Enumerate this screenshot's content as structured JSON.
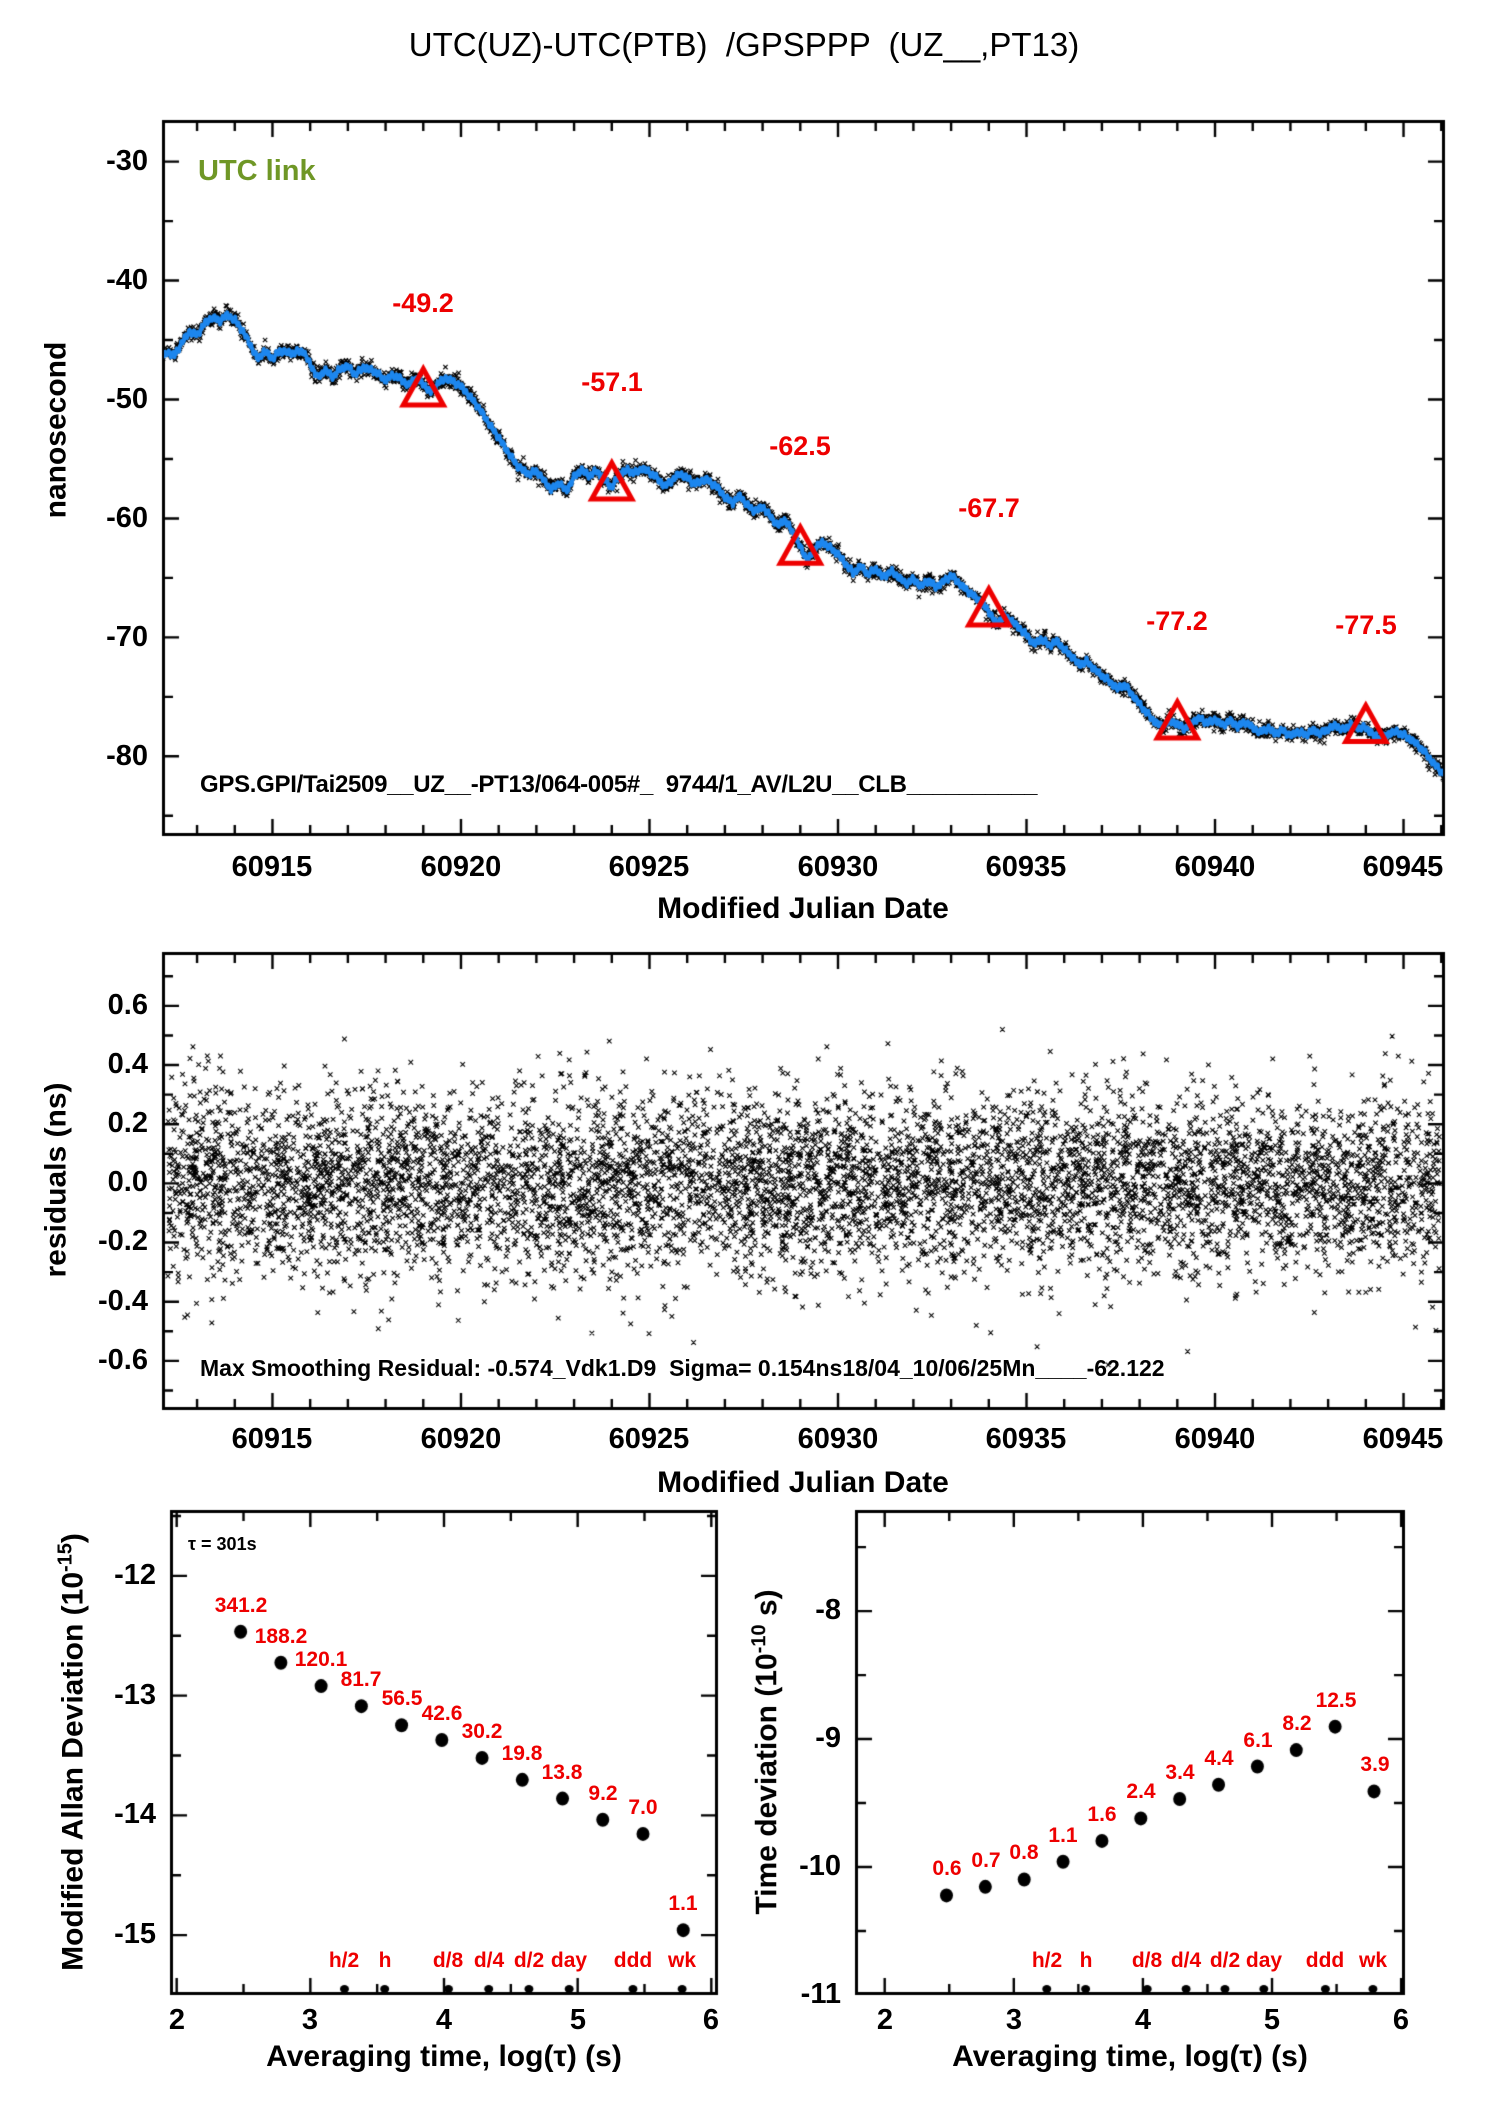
{
  "title": "UTC(UZ)-UTC(PTB)  /GPSPPP  (UZ__,PT13)",
  "colors": {
    "series_blue": "#1c86ee",
    "accent_red": "#ee0000",
    "utc_link_green": "#6f9726",
    "ink": "#000000"
  },
  "top_panel": {
    "corner_label": "UTC link",
    "ylabel": "nanosecond",
    "xlabel": "Modified Julian Date",
    "footer": "GPS.GPI/Tai2509__UZ__-PT13/064-005#_  9744/1_AV/L2U__CLB__________",
    "x_tick_labels": [
      "60915",
      "60920",
      "60925",
      "60930",
      "60935",
      "60940",
      "60945"
    ],
    "y_tick_labels": [
      "-30",
      "-40",
      "-50",
      "-60",
      "-70",
      "-80"
    ],
    "annotations": [
      "-49.2",
      "-57.1",
      "-62.5",
      "-67.7",
      "-77.2",
      "-77.5"
    ]
  },
  "residuals_panel": {
    "ylabel": "residuals (ns)",
    "xlabel": "Modified Julian Date",
    "stats_line": "Max Smoothing Residual: -0.574_Vdk1.D9  Sigma= 0.154ns18/04_10/06/25Mn____-62.122",
    "x_tick_labels": [
      "60915",
      "60920",
      "60925",
      "60930",
      "60935",
      "60940",
      "60945"
    ],
    "y_tick_labels": [
      "0.6",
      "0.4",
      "0.2",
      "0.0",
      "-0.2",
      "-0.4",
      "-0.6"
    ]
  },
  "mdev_panel": {
    "tau_note": "τ = 301s",
    "ylabel_parts": {
      "pre": "Modified Allan Deviation (10",
      "sup": "-15",
      "post": ")"
    },
    "xlabel": "Averaging time, log(τ) (s)",
    "x_tick_labels": [
      "2",
      "3",
      "4",
      "5",
      "6"
    ],
    "y_tick_labels": [
      "-12",
      "-13",
      "-14",
      "-15"
    ],
    "point_labels": [
      "341.2",
      "188.2",
      "120.1",
      "81.7",
      "56.5",
      "42.6",
      "30.2",
      "19.8",
      "13.8",
      "9.2",
      "7.0",
      "1.1"
    ],
    "tau_marker_labels": [
      "h/2",
      "h",
      "d/8",
      "d/4",
      "d/2",
      "day",
      "ddd",
      "wk"
    ]
  },
  "tdev_panel": {
    "ylabel_parts": {
      "pre": "Time deviation (10",
      "sup": "-10",
      "post": " s)"
    },
    "xlabel": "Averaging time, log(τ) (s)",
    "x_tick_labels": [
      "2",
      "3",
      "4",
      "5",
      "6"
    ],
    "y_tick_labels": [
      "-8",
      "-9",
      "-10",
      "-11"
    ],
    "point_labels": [
      "0.6",
      "0.7",
      "0.8",
      "1.1",
      "1.6",
      "2.4",
      "3.4",
      "4.4",
      "6.1",
      "8.2",
      "12.5",
      "3.9"
    ],
    "tau_marker_labels": [
      "h/2",
      "h",
      "d/8",
      "d/4",
      "d/2",
      "day",
      "ddd",
      "wk"
    ]
  },
  "chart_data": [
    {
      "id": "utc_link_timeseries",
      "type": "line",
      "title": "UTC(UZ)-UTC(PTB) /GPSPPP (UZ__,PT13)",
      "xlabel": "Modified Julian Date",
      "ylabel": "nanosecond",
      "legend": "UTC link",
      "xlim": [
        60912.07,
        60946.1
      ],
      "ylim": [
        -86.7,
        -26.5
      ],
      "ticks": {
        "x": {
          "minor": 1,
          "major": 5
        },
        "y": {
          "minor": 5,
          "major": 10
        }
      },
      "x_major_ticks": [
        60915,
        60920,
        60925,
        60930,
        60935,
        60940,
        60945
      ],
      "y_major_ticks": [
        -30,
        -40,
        -50,
        -60,
        -70,
        -80
      ],
      "raw_scatter_sigma_ns": 0.3,
      "daily_markers": [
        {
          "x": 60919,
          "y": -49.2,
          "label": "-49.2"
        },
        {
          "x": 60924,
          "y": -57.1,
          "label": "-57.1"
        },
        {
          "x": 60929,
          "y": -62.5,
          "label": "-62.5"
        },
        {
          "x": 60934,
          "y": -67.7,
          "label": "-67.7"
        },
        {
          "x": 60939,
          "y": -77.2,
          "label": "-77.2"
        },
        {
          "x": 60944,
          "y": -77.5,
          "label": "-77.5"
        }
      ],
      "series": [
        {
          "name": "UTC link smoothed",
          "color": "#1c86ee",
          "points": [
            [
              60912.0,
              -46.8
            ],
            [
              60912.2,
              -46.0
            ],
            [
              60912.4,
              -46.3
            ],
            [
              60912.6,
              -45.2
            ],
            [
              60912.8,
              -44.3
            ],
            [
              60913.0,
              -44.6
            ],
            [
              60913.2,
              -43.6
            ],
            [
              60913.4,
              -43.1
            ],
            [
              60913.6,
              -43.4
            ],
            [
              60913.8,
              -42.9
            ],
            [
              60914.0,
              -43.3
            ],
            [
              60914.2,
              -44.2
            ],
            [
              60914.4,
              -45.3
            ],
            [
              60914.6,
              -46.6
            ],
            [
              60914.8,
              -45.9
            ],
            [
              60915.0,
              -46.6
            ],
            [
              60915.2,
              -45.9
            ],
            [
              60915.5,
              -46.1
            ],
            [
              60915.8,
              -45.9
            ],
            [
              60916.0,
              -47.0
            ],
            [
              60916.2,
              -48.2
            ],
            [
              60916.4,
              -47.5
            ],
            [
              60916.6,
              -48.1
            ],
            [
              60916.8,
              -47.4
            ],
            [
              60917.0,
              -47.2
            ],
            [
              60917.2,
              -47.9
            ],
            [
              60917.4,
              -47.3
            ],
            [
              60917.7,
              -47.6
            ],
            [
              60918.0,
              -48.4
            ],
            [
              60918.2,
              -47.9
            ],
            [
              60918.4,
              -48.3
            ],
            [
              60918.6,
              -48.8
            ],
            [
              60918.8,
              -48.2
            ],
            [
              60919.0,
              -48.7
            ],
            [
              60919.2,
              -49.4
            ],
            [
              60919.4,
              -48.6
            ],
            [
              60919.6,
              -48.2
            ],
            [
              60919.8,
              -48.5
            ],
            [
              60920.0,
              -48.9
            ],
            [
              60920.2,
              -49.6
            ],
            [
              60920.4,
              -50.4
            ],
            [
              60920.6,
              -51.3
            ],
            [
              60920.8,
              -52.3
            ],
            [
              60921.0,
              -53.2
            ],
            [
              60921.2,
              -54.2
            ],
            [
              60921.5,
              -55.6
            ],
            [
              60921.8,
              -56.3
            ],
            [
              60922.0,
              -56.0
            ],
            [
              60922.2,
              -56.8
            ],
            [
              60922.4,
              -57.6
            ],
            [
              60922.6,
              -57.0
            ],
            [
              60922.8,
              -57.7
            ],
            [
              60923.0,
              -56.5
            ],
            [
              60923.2,
              -55.9
            ],
            [
              60923.4,
              -56.4
            ],
            [
              60923.6,
              -56.0
            ],
            [
              60923.8,
              -56.7
            ],
            [
              60924.0,
              -57.4
            ],
            [
              60924.2,
              -56.3
            ],
            [
              60924.4,
              -55.9
            ],
            [
              60924.6,
              -56.2
            ],
            [
              60924.8,
              -55.8
            ],
            [
              60925.0,
              -56.1
            ],
            [
              60925.2,
              -56.6
            ],
            [
              60925.4,
              -57.3
            ],
            [
              60925.6,
              -56.8
            ],
            [
              60925.8,
              -56.2
            ],
            [
              60926.0,
              -56.6
            ],
            [
              60926.2,
              -57.1
            ],
            [
              60926.5,
              -56.7
            ],
            [
              60926.8,
              -57.4
            ],
            [
              60927.0,
              -58.2
            ],
            [
              60927.2,
              -58.7
            ],
            [
              60927.4,
              -58.1
            ],
            [
              60927.6,
              -58.9
            ],
            [
              60927.8,
              -59.4
            ],
            [
              60928.0,
              -59.0
            ],
            [
              60928.2,
              -59.8
            ],
            [
              60928.4,
              -60.6
            ],
            [
              60928.6,
              -60.1
            ],
            [
              60928.8,
              -61.2
            ],
            [
              60929.0,
              -62.4
            ],
            [
              60929.2,
              -63.6
            ],
            [
              60929.4,
              -62.4
            ],
            [
              60929.6,
              -62.0
            ],
            [
              60929.8,
              -62.5
            ],
            [
              60930.0,
              -63.0
            ],
            [
              60930.2,
              -63.8
            ],
            [
              60930.4,
              -64.6
            ],
            [
              60930.6,
              -64.0
            ],
            [
              60930.8,
              -64.7
            ],
            [
              60931.0,
              -64.2
            ],
            [
              60931.2,
              -65.0
            ],
            [
              60931.4,
              -64.4
            ],
            [
              60931.6,
              -64.9
            ],
            [
              60931.8,
              -65.5
            ],
            [
              60932.0,
              -65.1
            ],
            [
              60932.2,
              -65.7
            ],
            [
              60932.4,
              -65.2
            ],
            [
              60932.6,
              -65.8
            ],
            [
              60932.8,
              -65.3
            ],
            [
              60933.0,
              -64.8
            ],
            [
              60933.2,
              -65.4
            ],
            [
              60933.4,
              -66.0
            ],
            [
              60933.6,
              -66.5
            ],
            [
              60933.8,
              -67.1
            ],
            [
              60934.0,
              -67.8
            ],
            [
              60934.2,
              -68.9
            ],
            [
              60934.4,
              -68.2
            ],
            [
              60934.6,
              -68.6
            ],
            [
              60934.8,
              -69.2
            ],
            [
              60935.0,
              -69.8
            ],
            [
              60935.2,
              -70.6
            ],
            [
              60935.4,
              -70.1
            ],
            [
              60935.6,
              -70.7
            ],
            [
              60935.8,
              -70.3
            ],
            [
              60936.0,
              -71.0
            ],
            [
              60936.2,
              -71.6
            ],
            [
              60936.4,
              -72.3
            ],
            [
              60936.6,
              -72.0
            ],
            [
              60936.8,
              -72.7
            ],
            [
              60937.0,
              -73.2
            ],
            [
              60937.2,
              -73.7
            ],
            [
              60937.4,
              -74.3
            ],
            [
              60937.6,
              -74.0
            ],
            [
              60937.8,
              -74.8
            ],
            [
              60938.0,
              -75.6
            ],
            [
              60938.2,
              -76.4
            ],
            [
              60938.4,
              -77.1
            ],
            [
              60938.6,
              -77.5
            ],
            [
              60938.8,
              -77.0
            ],
            [
              60939.0,
              -77.3
            ],
            [
              60939.2,
              -77.7
            ],
            [
              60939.4,
              -77.1
            ],
            [
              60939.6,
              -76.8
            ],
            [
              60939.8,
              -77.2
            ],
            [
              60940.0,
              -76.9
            ],
            [
              60940.2,
              -77.4
            ],
            [
              60940.4,
              -77.0
            ],
            [
              60940.6,
              -77.5
            ],
            [
              60940.8,
              -77.1
            ],
            [
              60941.0,
              -77.6
            ],
            [
              60941.2,
              -78.0
            ],
            [
              60941.4,
              -77.6
            ],
            [
              60941.6,
              -78.1
            ],
            [
              60941.8,
              -77.8
            ],
            [
              60942.0,
              -78.3
            ],
            [
              60942.2,
              -77.9
            ],
            [
              60942.4,
              -78.2
            ],
            [
              60942.6,
              -77.8
            ],
            [
              60942.8,
              -78.1
            ],
            [
              60943.0,
              -77.7
            ],
            [
              60943.2,
              -77.4
            ],
            [
              60943.4,
              -77.8
            ],
            [
              60943.6,
              -77.3
            ],
            [
              60943.8,
              -77.6
            ],
            [
              60944.0,
              -77.6
            ],
            [
              60944.2,
              -78.2
            ],
            [
              60944.4,
              -78.6
            ],
            [
              60944.6,
              -78.1
            ],
            [
              60944.8,
              -77.9
            ],
            [
              60945.0,
              -78.2
            ],
            [
              60945.2,
              -78.6
            ],
            [
              60945.4,
              -79.1
            ],
            [
              60945.6,
              -79.8
            ],
            [
              60945.8,
              -80.6
            ],
            [
              60946.1,
              -81.6
            ]
          ]
        }
      ]
    },
    {
      "id": "smoothing_residuals",
      "type": "scatter",
      "xlabel": "Modified Julian Date",
      "ylabel": "residuals (ns)",
      "xlim": [
        60912.07,
        60946.1
      ],
      "ylim": [
        -0.766,
        0.782
      ],
      "ticks": {
        "x": {
          "minor": 1,
          "major": 5
        },
        "y": {
          "minor": 0.1,
          "major": 0.2
        }
      },
      "marker": "x",
      "sigma_ns": 0.154,
      "max_smoothing_residual_ns": -0.574,
      "n_points": 7000
    },
    {
      "id": "mdev",
      "type": "scatter",
      "xlabel": "Averaging time, log(τ) (s)",
      "ylabel": "Modified Allan Deviation (10^-15)",
      "xlim": [
        1.95,
        6.05
      ],
      "ylim": [
        -15.5,
        -11.45
      ],
      "ticks": {
        "x": {
          "minor": 0.5,
          "major": 1
        },
        "y": {
          "minor": 0.5,
          "major": 1
        }
      },
      "tau_note_seconds": 301,
      "tau_seconds": [
        301,
        602,
        1204,
        2408,
        4816,
        9632,
        19264,
        38528,
        77056,
        154112,
        308224,
        616448
      ],
      "values_1e15": [
        341.2,
        188.2,
        120.1,
        81.7,
        56.5,
        42.6,
        30.2,
        19.8,
        13.8,
        9.2,
        7.0,
        1.1
      ],
      "time_markers": [
        {
          "label": "h/2",
          "log_tau": 3.2553
        },
        {
          "label": "h",
          "log_tau": 3.5563
        },
        {
          "label": "d/8",
          "log_tau": 4.0334
        },
        {
          "label": "d/4",
          "log_tau": 4.3345
        },
        {
          "label": "d/2",
          "log_tau": 4.6355
        },
        {
          "label": "day",
          "log_tau": 4.9365
        },
        {
          "label": "ddd",
          "log_tau": 5.4137
        },
        {
          "label": "wk",
          "log_tau": 5.7816
        }
      ]
    },
    {
      "id": "tdev",
      "type": "scatter",
      "xlabel": "Averaging time, log(τ) (s)",
      "ylabel": "Time deviation (10^-10 s)",
      "xlim": [
        1.77,
        6.03
      ],
      "ylim": [
        -11.0,
        -7.21
      ],
      "ticks": {
        "x": {
          "minor": 0.5,
          "major": 1
        },
        "y": {
          "minor": 0.5,
          "major": 1
        }
      },
      "tau_seconds": [
        301,
        602,
        1204,
        2408,
        4816,
        9632,
        19264,
        38528,
        77056,
        154112,
        308224,
        616448
      ],
      "values_1e10": [
        0.6,
        0.7,
        0.8,
        1.1,
        1.6,
        2.4,
        3.4,
        4.4,
        6.1,
        8.2,
        12.5,
        3.9
      ],
      "time_markers": [
        {
          "label": "h/2",
          "log_tau": 3.2553
        },
        {
          "label": "h",
          "log_tau": 3.5563
        },
        {
          "label": "d/8",
          "log_tau": 4.0334
        },
        {
          "label": "d/4",
          "log_tau": 4.3345
        },
        {
          "label": "d/2",
          "log_tau": 4.6355
        },
        {
          "label": "day",
          "log_tau": 4.9365
        },
        {
          "label": "ddd",
          "log_tau": 5.4137
        },
        {
          "label": "wk",
          "log_tau": 5.7816
        }
      ]
    }
  ]
}
